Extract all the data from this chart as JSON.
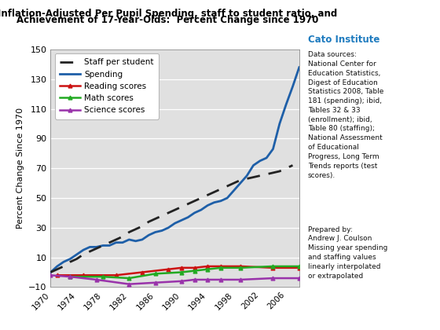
{
  "title_line1": "Inflation-Adjusted Per Pupil Spending, staff to student ratio, and",
  "title_line2": "Achievement of 17-Year-Olds:  Percent Change since 1970",
  "ylabel": "Percent Change Since 1970",
  "ylim": [
    -10,
    150
  ],
  "yticks": [
    -10,
    10,
    30,
    50,
    70,
    90,
    110,
    130,
    150
  ],
  "figure_bg": "#ffffff",
  "plot_bg_color": "#e0e0e0",
  "cato_color": "#1e7bbf",
  "years_spending": [
    1970,
    1971,
    1972,
    1973,
    1974,
    1975,
    1976,
    1977,
    1978,
    1979,
    1980,
    1981,
    1982,
    1983,
    1984,
    1985,
    1986,
    1987,
    1988,
    1989,
    1990,
    1991,
    1992,
    1993,
    1994,
    1995,
    1996,
    1997,
    1998,
    1999,
    2000,
    2001,
    2002,
    2003,
    2004,
    2005,
    2006,
    2007,
    2008
  ],
  "spending": [
    0,
    4,
    7,
    9,
    12,
    15,
    17,
    17,
    18,
    18,
    20,
    20,
    22,
    21,
    22,
    25,
    27,
    28,
    30,
    33,
    35,
    37,
    40,
    42,
    45,
    47,
    48,
    50,
    55,
    60,
    65,
    72,
    75,
    77,
    83,
    100,
    113,
    125,
    138
  ],
  "years_staff": [
    1970,
    1971,
    1972,
    1973,
    1974,
    1975,
    1976,
    1977,
    1978,
    1979,
    1980,
    1981,
    1982,
    1983,
    1984,
    1985,
    1986,
    1987,
    1988,
    1989,
    1990,
    1991,
    1992,
    1993,
    1994,
    1995,
    1996,
    1997,
    1998,
    1999,
    2000,
    2001,
    2002,
    2003,
    2004,
    2005,
    2006,
    2007
  ],
  "staff": [
    0,
    2,
    4,
    7,
    9,
    12,
    14,
    16,
    18,
    20,
    22,
    24,
    27,
    29,
    31,
    34,
    36,
    38,
    40,
    42,
    44,
    46,
    48,
    50,
    52,
    54,
    56,
    58,
    60,
    62,
    63,
    64,
    65,
    66,
    67,
    68,
    70,
    72
  ],
  "years_reading": [
    1971,
    1975,
    1980,
    1984,
    1988,
    1990,
    1992,
    1994,
    1996,
    1999,
    2004,
    2008
  ],
  "reading": [
    -2,
    -2,
    -2,
    0,
    2,
    3,
    3,
    4,
    4,
    4,
    3,
    3
  ],
  "years_math": [
    1973,
    1978,
    1982,
    1986,
    1990,
    1992,
    1994,
    1996,
    1999,
    2004,
    2008
  ],
  "math": [
    -3,
    -3,
    -4,
    -1,
    0,
    1,
    2,
    3,
    3,
    4,
    4
  ],
  "years_science": [
    1970,
    1973,
    1977,
    1982,
    1986,
    1990,
    1992,
    1994,
    1996,
    1999,
    2004,
    2008
  ],
  "science": [
    -2,
    -3,
    -5,
    -8,
    -7,
    -6,
    -5,
    -5,
    -5,
    -5,
    -4,
    -4
  ],
  "spending_color": "#1e5fa8",
  "staff_color": "#222222",
  "reading_color": "#cc1111",
  "math_color": "#22aa22",
  "science_color": "#9933aa"
}
